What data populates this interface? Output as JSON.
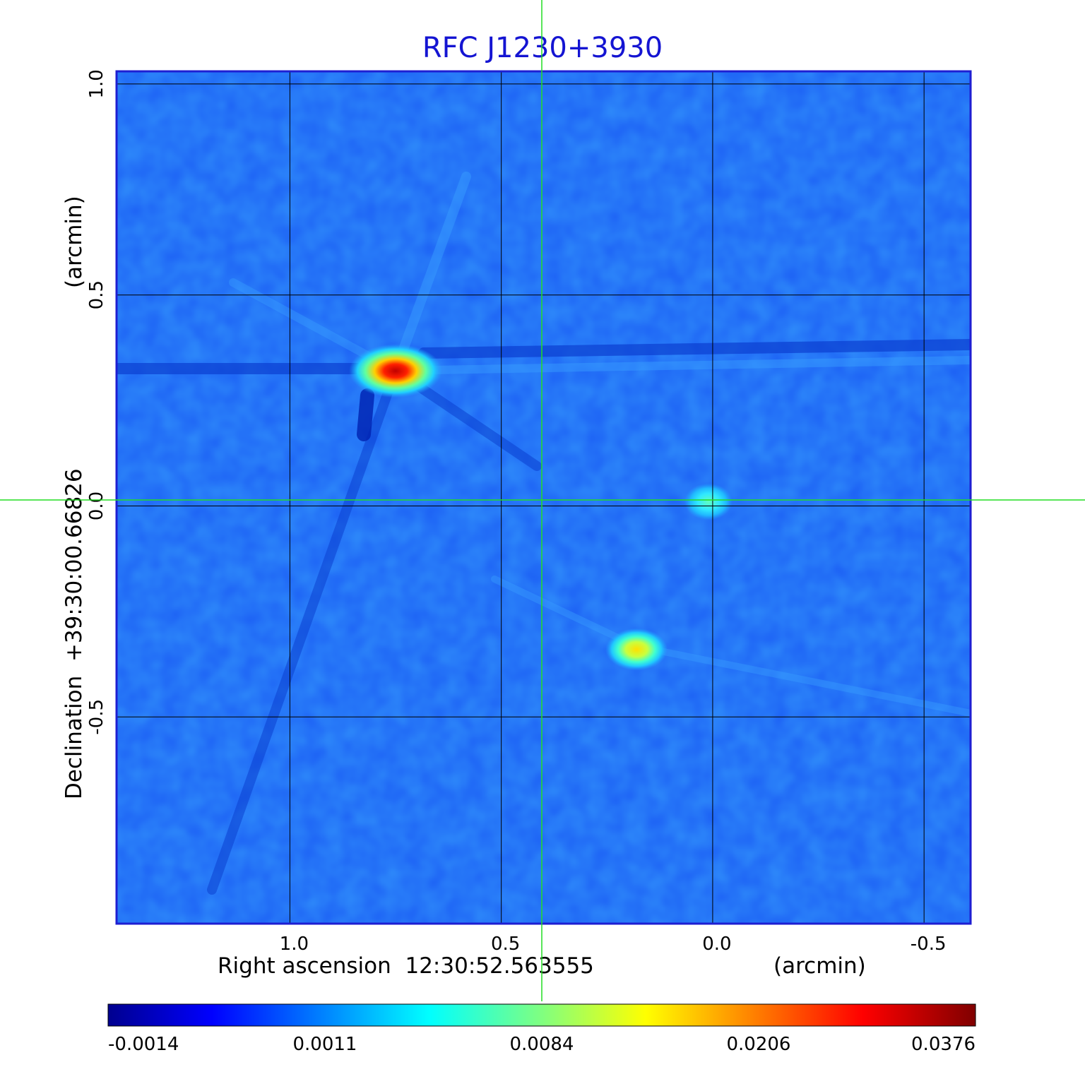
{
  "chart_data": {
    "type": "heatmap",
    "title": "RFC J1230+3930",
    "xlabel": "Right ascension  12:30:52.563555",
    "xunit": "(arcmin)",
    "ylabel": "Declination  +39:30:00.66826",
    "yunit": "(arcmin)",
    "xlim": [
      1.41,
      -0.61
    ],
    "ylim": [
      -0.99,
      1.03
    ],
    "xticks": [
      1.0,
      0.5,
      0.0,
      -0.5
    ],
    "xtick_labels": [
      "1.0",
      "0.5",
      "0.0",
      "-0.5"
    ],
    "yticks": [
      -0.5,
      0.0,
      0.5,
      1.0
    ],
    "ytick_labels": [
      "-0.5",
      "0.0",
      "0.5",
      "1.0"
    ],
    "grid": true,
    "colormap": "jet",
    "colorbar": {
      "ticks": [
        -0.0014,
        0.0011,
        0.0084,
        0.0206,
        0.0376
      ],
      "tick_labels": [
        "-0.0014",
        "0.0011",
        "0.0084",
        "0.0206",
        "0.0376"
      ]
    },
    "sources": [
      {
        "x": 0.75,
        "y": 0.32,
        "peak": 0.0376
      },
      {
        "x": 0.01,
        "y": 0.01,
        "peak": 0.0084
      },
      {
        "x": 0.18,
        "y": -0.34,
        "peak": 0.0206
      }
    ],
    "crosshair": {
      "x": 0.0,
      "y": 0.0
    }
  },
  "colors": {
    "title": "#1414d2",
    "frame": "#1e1ed2",
    "background_map": "#1e64f5",
    "crosshair": "#22dd22",
    "grid": "#000000"
  }
}
